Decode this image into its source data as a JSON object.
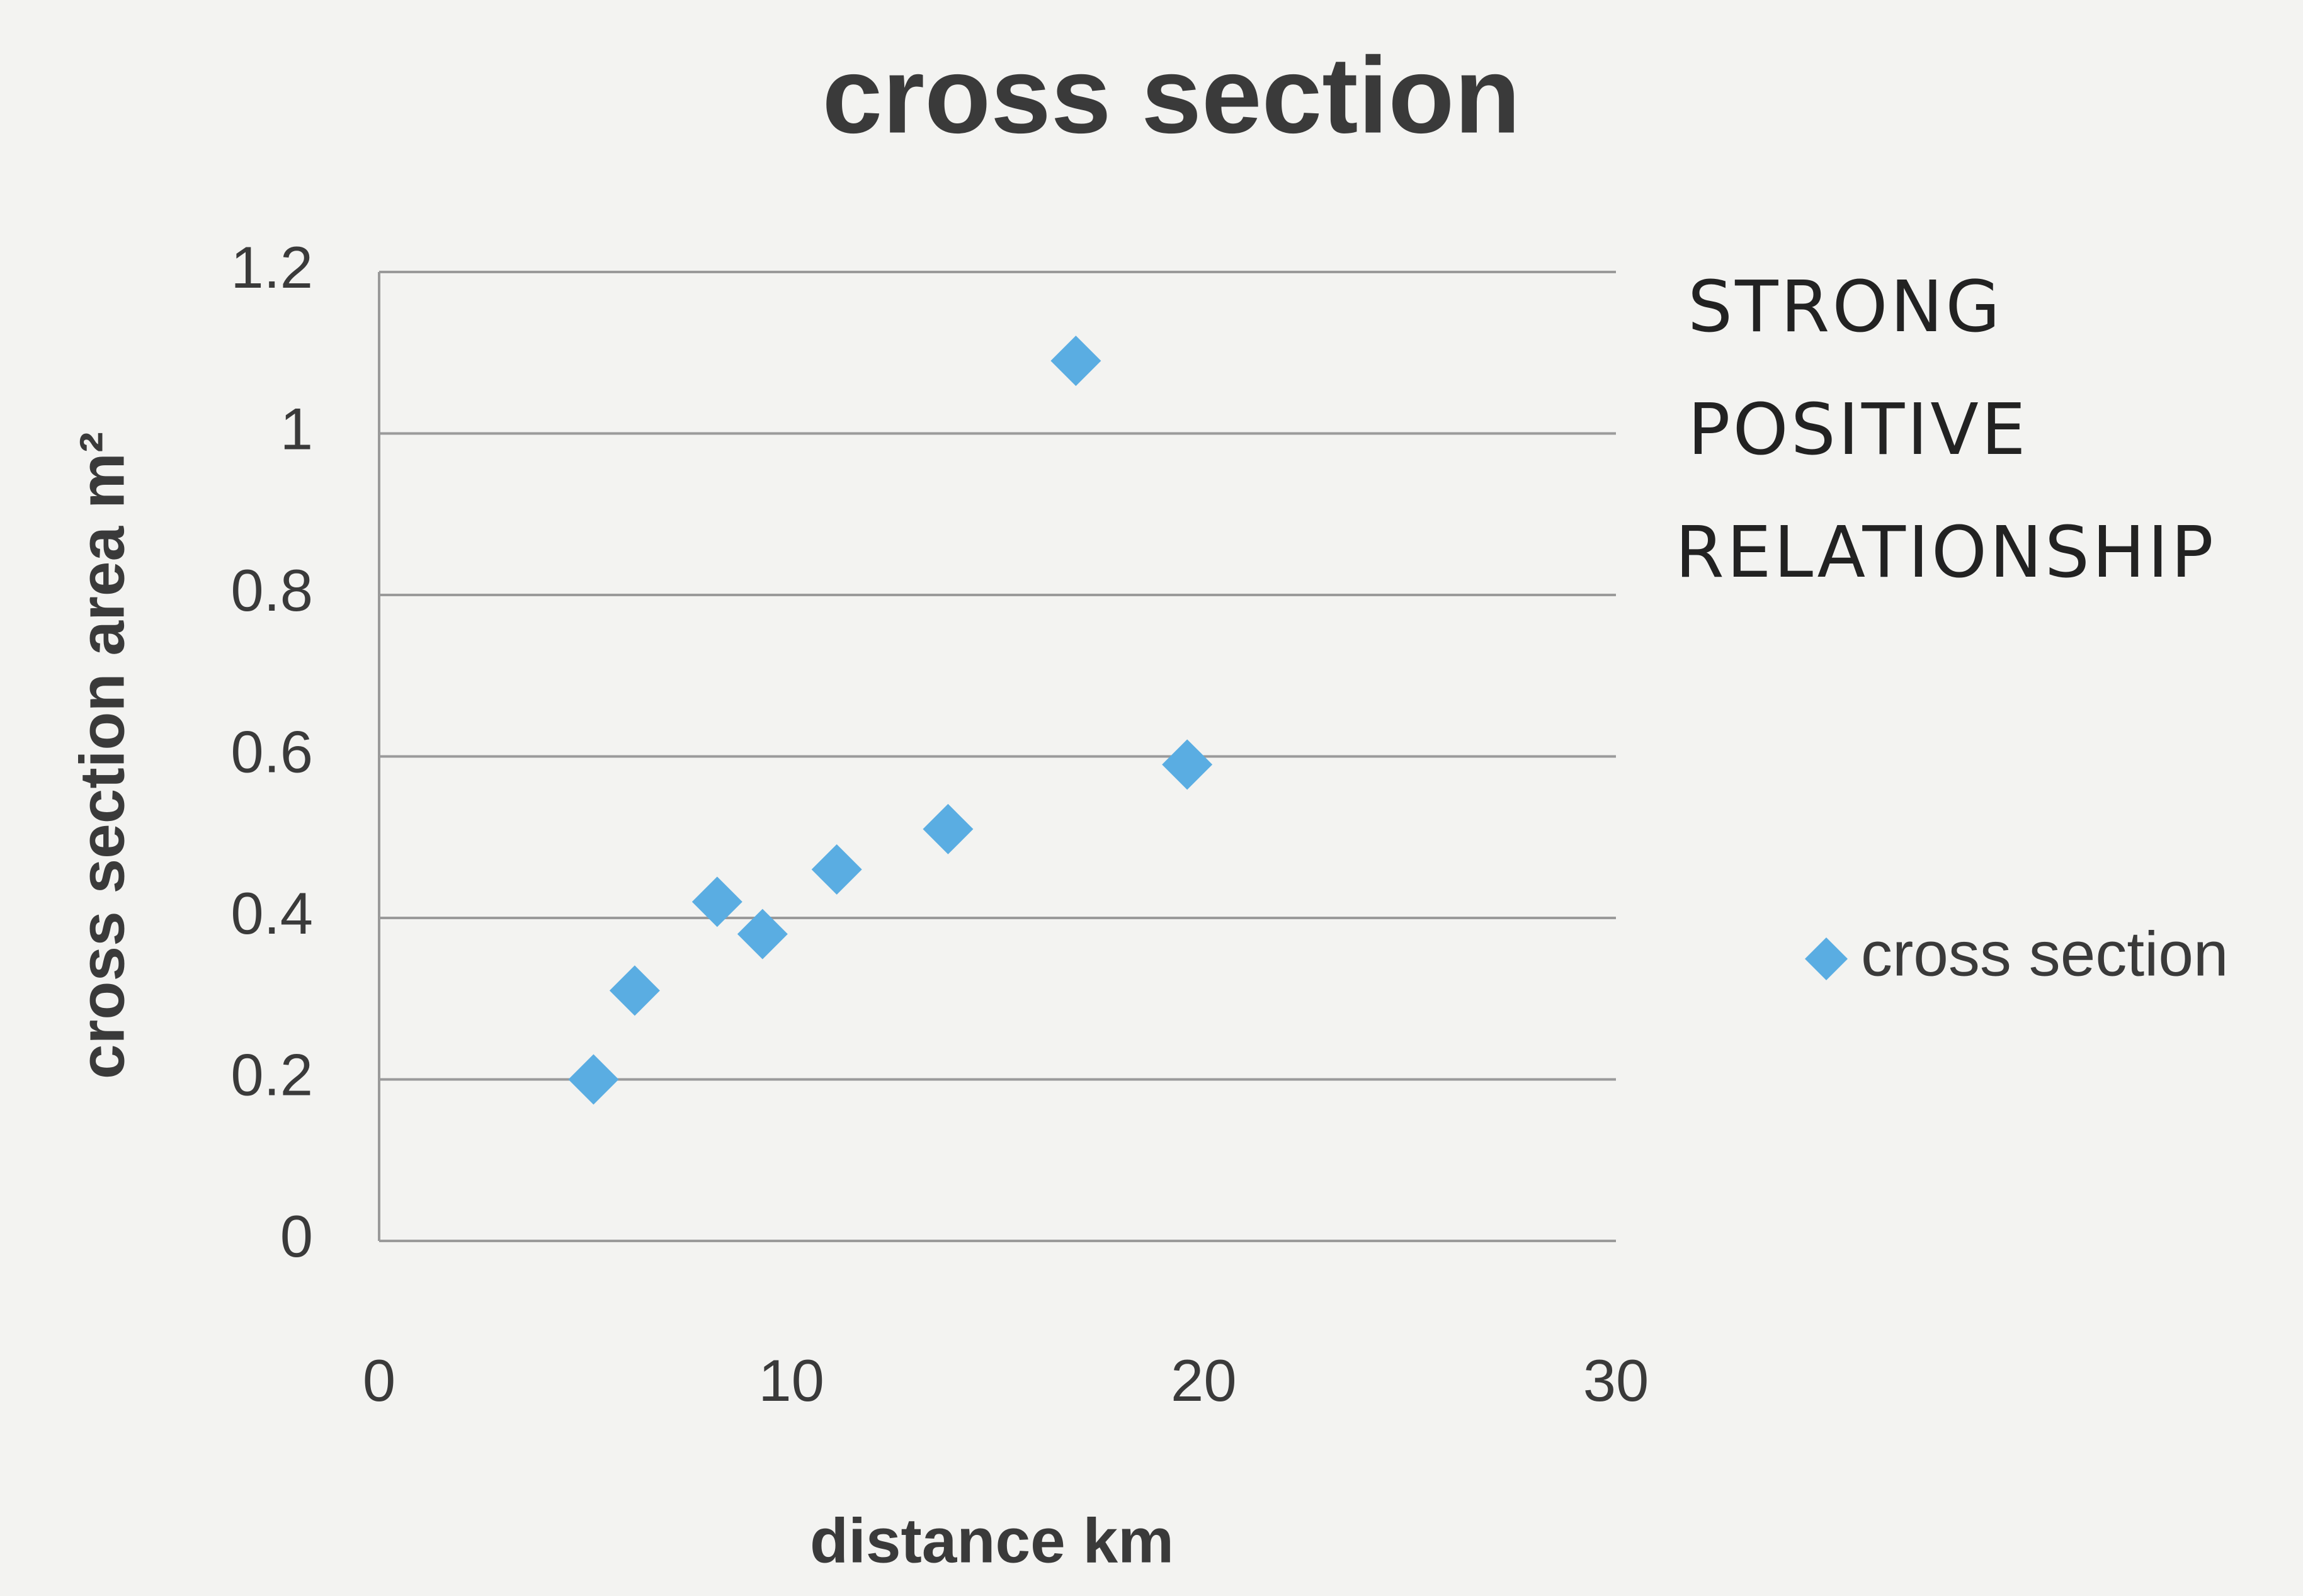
{
  "chart_data": {
    "type": "scatter",
    "title": "cross section",
    "x_label": "distance  km",
    "y_label": "cross section area  m²",
    "annotation": [
      "STRONG",
      "POSITIVE",
      "RELATIONSHIP"
    ],
    "series": [
      {
        "name": "cross section",
        "color": "#5aade2",
        "x": [
          5.2,
          6.2,
          8.2,
          9.3,
          11.1,
          13.8,
          16.9,
          19.6
        ],
        "values": [
          0.2,
          0.31,
          0.42,
          0.38,
          0.46,
          0.51,
          1.09,
          0.59
        ]
      }
    ],
    "xlim": [
      0,
      30
    ],
    "xticks": [
      0,
      10,
      20,
      30
    ],
    "ylim": [
      0,
      1.2
    ],
    "yticks": [
      0,
      {
        "value": 0.2,
        "label": "0.2"
      },
      {
        "value": 0.4,
        "label": "0.4"
      },
      {
        "value": 0.6,
        "label": "0.6"
      },
      {
        "value": 0.8,
        "label": "0.8"
      },
      1,
      {
        "value": 1.2,
        "label": "1.2"
      }
    ],
    "grid": true,
    "legend": "right"
  }
}
